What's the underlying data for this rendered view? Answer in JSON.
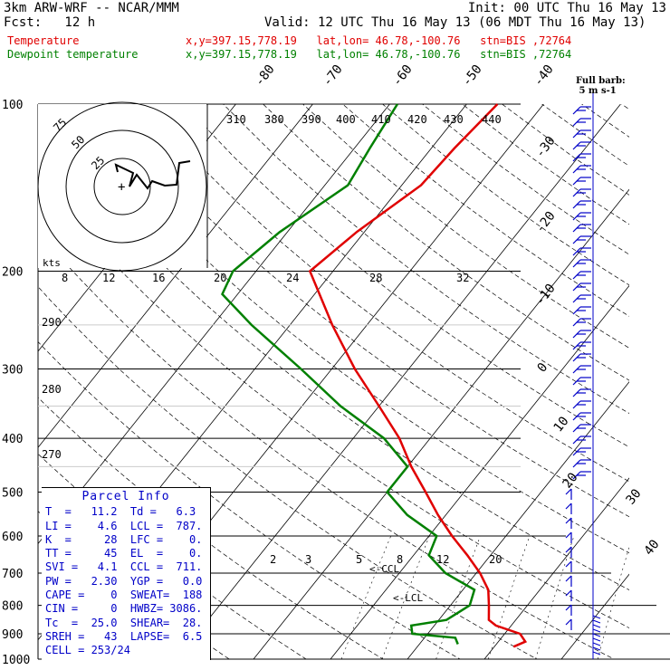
{
  "header": {
    "model": "3km ARW-WRF -- NCAR/MMM",
    "init": "Init: 00 UTC Thu 16 May 13",
    "fcst": "Fcst:   12 h",
    "valid": "Valid: 12 UTC Thu 16 May 13 (06 MDT Thu 16 May 13)",
    "temp_label": "Temperature",
    "dew_label": "Dewpoint temperature",
    "temp_loc": "x,y=397.15,778.19   lat,lon= 46.78,-100.76   stn=BIS ,72764",
    "dew_loc": "x,y=397.15,778.19   lat,lon= 46.78,-100.76   stn=BIS ,72764",
    "barb_legend": "Full barb:\n 5 m s-1"
  },
  "parcel_info": {
    "title": "Parcel Info",
    "rows": [
      "T  =   11.2  Td =   6.3",
      "LI =    4.6  LCL =  787.",
      "K  =     28  LFC =    0.",
      "TT =     45  EL  =    0.",
      "SVI =   4.1  CCL =  711.",
      "PW =   2.30  YGP =   0.0",
      "CAPE =    0  SWEAT=  188",
      "CIN =     0  HWBZ= 3086.",
      "Tc  =  25.0  SHEAR=  28.",
      "SREH =   43  LAPSE=  6.5",
      "CELL = 253/24"
    ]
  },
  "hodograph": {
    "units": "kts",
    "ring_labels": [
      "25",
      "50",
      "75"
    ]
  },
  "annotations": {
    "lcl": "<-LCL",
    "ccl": "<-CCL"
  },
  "colors": {
    "temperature": "#e00000",
    "dewpoint": "#008000",
    "wind": "#0000c8",
    "theta_e": "#0000c8"
  },
  "chart_data": {
    "type": "line",
    "title": "",
    "y_axis": "pressure (hPa), log scale",
    "pressure_levels": [
      100,
      200,
      300,
      400,
      500,
      600,
      700,
      800,
      900,
      1000
    ],
    "isotherm_labels": [
      "-80",
      "-70",
      "-60",
      "-50",
      "-40",
      "-30",
      "-20",
      "-10",
      "0",
      "10",
      "20",
      "30",
      "40"
    ],
    "theta_e_labels": [
      "310",
      "380",
      "390",
      "400",
      "410",
      "420",
      "430",
      "440"
    ],
    "dry_adiabat_labels": [
      "290",
      "280",
      "270"
    ],
    "mixing_ratio_labels": [
      "8",
      "12",
      "16",
      "20",
      "24",
      "28",
      "32"
    ],
    "low_mixing_ratio_labels": [
      "2",
      "3",
      "5",
      "8",
      "12",
      "20"
    ],
    "series": [
      {
        "name": "Temperature",
        "points": [
          [
            950,
            12.5
          ],
          [
            930,
            13.5
          ],
          [
            900,
            12.0
          ],
          [
            870,
            8.0
          ],
          [
            850,
            6.5
          ],
          [
            800,
            5.0
          ],
          [
            750,
            3.3
          ],
          [
            700,
            0.5
          ],
          [
            650,
            -3
          ],
          [
            600,
            -7
          ],
          [
            550,
            -11
          ],
          [
            500,
            -15
          ],
          [
            450,
            -19.5
          ],
          [
            400,
            -24
          ],
          [
            350,
            -30
          ],
          [
            300,
            -37
          ],
          [
            250,
            -44.5
          ],
          [
            200,
            -53
          ],
          [
            170,
            -51
          ],
          [
            140,
            -47.5
          ],
          [
            120,
            -47
          ],
          [
            100,
            -46
          ]
        ]
      },
      {
        "name": "Dewpoint temperature",
        "points": [
          [
            940,
            5.0
          ],
          [
            915,
            4.0
          ],
          [
            900,
            -2.0
          ],
          [
            870,
            -3.0
          ],
          [
            850,
            1.0
          ],
          [
            800,
            2.5
          ],
          [
            750,
            1.5
          ],
          [
            700,
            -4.0
          ],
          [
            650,
            -8.0
          ],
          [
            600,
            -9.0
          ],
          [
            550,
            -15
          ],
          [
            500,
            -20
          ],
          [
            450,
            -20
          ],
          [
            400,
            -26
          ],
          [
            350,
            -35
          ],
          [
            300,
            -44
          ],
          [
            250,
            -55
          ],
          [
            220,
            -62
          ],
          [
            200,
            -63
          ],
          [
            170,
            -61
          ],
          [
            140,
            -57
          ],
          [
            120,
            -58
          ],
          [
            100,
            -59
          ]
        ]
      }
    ],
    "hodograph_uv_kts": [
      [
        0,
        0
      ],
      [
        -4,
        4
      ],
      [
        -3,
        1
      ],
      [
        2,
        -2
      ],
      [
        5,
        -1
      ],
      [
        9,
        0
      ],
      [
        11,
        -2
      ],
      [
        14,
        -4
      ],
      [
        17,
        -4
      ],
      [
        19,
        -4
      ],
      [
        20,
        0
      ],
      [
        22,
        1
      ]
    ],
    "wind_profile_note": "wind barbs at right edge, 100-1000 hPa"
  }
}
